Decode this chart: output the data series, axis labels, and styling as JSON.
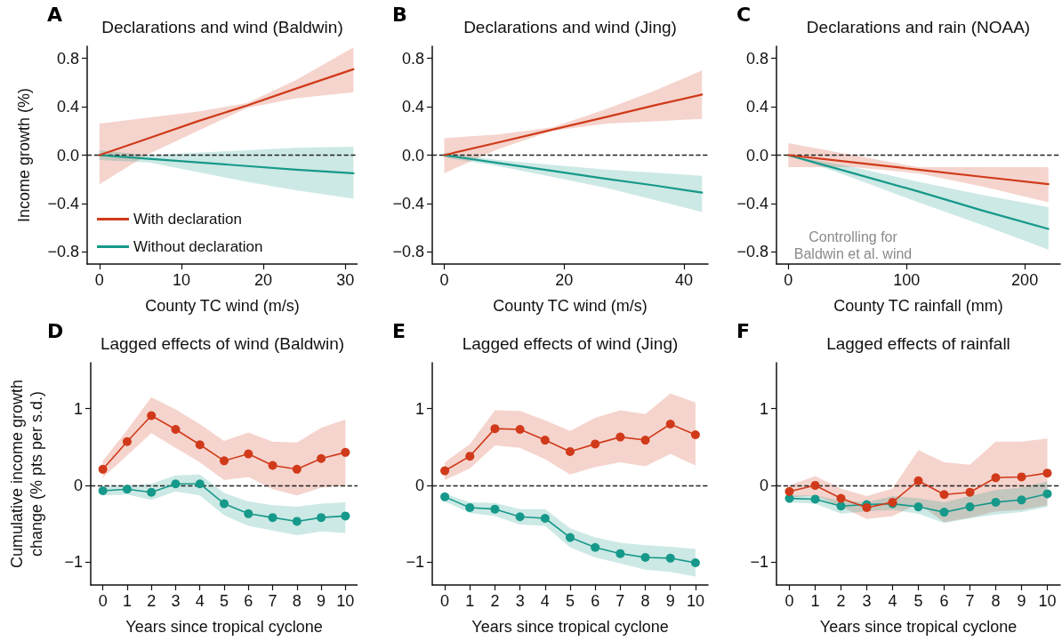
{
  "chart_data": [
    {
      "type": "line",
      "title": "Declarations and wind (Baldwin)",
      "xlabel": "County TC wind (m/s)",
      "ylabel": "Income growth (%)",
      "annotations": [
        "A"
      ],
      "xlim": [
        -1.5,
        31.5
      ],
      "xticks": [
        0,
        10,
        20,
        30
      ],
      "ylim": [
        -0.9,
        0.9
      ],
      "yticks": [
        {
          "value": -0.8,
          "label": "−0.8"
        },
        {
          "value": -0.4,
          "label": "−0.4"
        },
        {
          "value": 0,
          "label": "0.0"
        },
        0.4,
        0.8
      ],
      "grid": false,
      "legend": "bottom left",
      "marker": "none",
      "line_style": "solid",
      "ref_lines": [
        {
          "axis": "y",
          "value": 0,
          "color": "#222222",
          "line_style": "dashed"
        }
      ],
      "series": [
        {
          "name": "With declaration",
          "color": "#d03a1a",
          "x": [
            0,
            6,
            12,
            18,
            24,
            31
          ],
          "values": [
            0,
            0.14,
            0.28,
            0.41,
            0.55,
            0.71
          ],
          "lower": [
            -0.24,
            0.01,
            0.2,
            0.39,
            0.47,
            0.52
          ],
          "upper": [
            0.26,
            0.31,
            0.36,
            0.43,
            0.62,
            0.89
          ]
        },
        {
          "name": "Without declaration",
          "color": "#16998a",
          "x": [
            0,
            6,
            12,
            18,
            24,
            31
          ],
          "values": [
            0,
            -0.03,
            -0.06,
            -0.09,
            -0.12,
            -0.15
          ],
          "lower": [
            -0.04,
            -0.06,
            -0.14,
            -0.22,
            -0.29,
            -0.36
          ],
          "upper": [
            0.04,
            0.0,
            0.02,
            0.04,
            0.06,
            0.07
          ]
        }
      ]
    },
    {
      "type": "line",
      "title": "Declarations and wind (Jing)",
      "xlabel": "County TC wind (m/s)",
      "annotations": [
        "B"
      ],
      "xlim": [
        -2,
        44
      ],
      "xticks": [
        0,
        20,
        40
      ],
      "ylim": [
        -0.9,
        0.9
      ],
      "yticks": [
        {
          "value": -0.8,
          "label": "−0.8"
        },
        {
          "value": -0.4,
          "label": "−0.4"
        },
        {
          "value": 0,
          "label": "0.0"
        },
        0.4,
        0.8
      ],
      "grid": false,
      "marker": "none",
      "line_style": "solid",
      "ref_lines": [
        {
          "axis": "y",
          "value": 0,
          "color": "#222222",
          "line_style": "dashed"
        }
      ],
      "series": [
        {
          "color": "#d03a1a",
          "x": [
            0,
            9,
            18,
            27,
            35,
            43
          ],
          "values": [
            0,
            0.105,
            0.21,
            0.315,
            0.41,
            0.5
          ],
          "lower": [
            -0.15,
            0.05,
            0.2,
            0.26,
            0.28,
            0.3
          ],
          "upper": [
            0.14,
            0.17,
            0.23,
            0.38,
            0.53,
            0.7
          ]
        },
        {
          "color": "#16998a",
          "x": [
            0,
            9,
            18,
            27,
            35,
            43
          ],
          "values": [
            0,
            -0.065,
            -0.13,
            -0.195,
            -0.25,
            -0.31
          ],
          "lower": [
            -0.02,
            -0.09,
            -0.18,
            -0.27,
            -0.37,
            -0.47
          ],
          "upper": [
            0.02,
            -0.04,
            -0.08,
            -0.12,
            -0.145,
            -0.17
          ]
        }
      ]
    },
    {
      "type": "line",
      "title": "Declarations and rain (NOAA)",
      "xlabel": "County TC rainfall (mm)",
      "annotations": [
        "C",
        "Controlling for\nBaldwin et al. wind"
      ],
      "xlim": [
        -10,
        230
      ],
      "xticks": [
        0,
        100,
        200
      ],
      "ylim": [
        -0.9,
        0.9
      ],
      "yticks": [
        {
          "value": -0.8,
          "label": "−0.8"
        },
        {
          "value": -0.4,
          "label": "−0.4"
        },
        {
          "value": 0,
          "label": "0.0"
        },
        0.4,
        0.8
      ],
      "grid": false,
      "marker": "none",
      "line_style": "solid",
      "ref_lines": [
        {
          "axis": "y",
          "value": 0,
          "color": "#222222",
          "line_style": "dashed"
        }
      ],
      "series": [
        {
          "color": "#d03a1a",
          "x": [
            0,
            55,
            110,
            165,
            220
          ],
          "values": [
            0,
            -0.06,
            -0.12,
            -0.18,
            -0.24
          ],
          "lower": [
            -0.1,
            -0.1,
            -0.15,
            -0.26,
            -0.39
          ],
          "upper": [
            0.1,
            0.0,
            -0.1,
            -0.1,
            -0.1
          ]
        },
        {
          "color": "#16998a",
          "x": [
            0,
            55,
            110,
            165,
            220
          ],
          "values": [
            0,
            -0.15,
            -0.3,
            -0.46,
            -0.61
          ],
          "lower": [
            0,
            -0.19,
            -0.39,
            -0.58,
            -0.78
          ],
          "upper": [
            0,
            -0.1,
            -0.22,
            -0.33,
            -0.43
          ]
        }
      ]
    },
    {
      "type": "line",
      "title": "Lagged effects of wind (Baldwin)",
      "xlabel": "Years since tropical cyclone",
      "ylabel": "Cumulative income growth\nchange (% pts per s.d.)",
      "annotations": [
        "D"
      ],
      "xlim": [
        -0.5,
        10.5
      ],
      "xticks": [
        0,
        1,
        2,
        3,
        4,
        5,
        6,
        7,
        8,
        9,
        10
      ],
      "ylim": [
        -1.3,
        1.6
      ],
      "yticks": [
        {
          "value": -1,
          "label": "−1"
        },
        0,
        1
      ],
      "grid": false,
      "marker": "circle",
      "line_style": "solid",
      "ref_lines": [
        {
          "axis": "y",
          "value": 0,
          "color": "#222222",
          "line_style": "dashed"
        }
      ],
      "series": [
        {
          "color": "#d03a1a",
          "x": [
            0,
            1,
            2,
            3,
            4,
            5,
            6,
            7,
            8,
            9,
            10
          ],
          "values": [
            0.21,
            0.57,
            0.91,
            0.73,
            0.53,
            0.32,
            0.41,
            0.26,
            0.21,
            0.35,
            0.43
          ],
          "lower": [
            0.1,
            0.39,
            0.68,
            0.49,
            0.3,
            0.07,
            0.11,
            -0.05,
            -0.13,
            -0.03,
            0.0
          ],
          "upper": [
            0.32,
            0.72,
            1.15,
            0.99,
            0.8,
            0.58,
            0.69,
            0.57,
            0.56,
            0.75,
            0.86
          ]
        },
        {
          "color": "#16998a",
          "x": [
            0,
            1,
            2,
            3,
            4,
            5,
            6,
            7,
            8,
            9,
            10
          ],
          "values": [
            -0.07,
            -0.05,
            -0.09,
            0.02,
            0.02,
            -0.24,
            -0.37,
            -0.42,
            -0.47,
            -0.42,
            -0.4
          ],
          "lower": [
            -0.13,
            -0.12,
            -0.19,
            -0.08,
            -0.13,
            -0.39,
            -0.53,
            -0.59,
            -0.65,
            -0.6,
            -0.62
          ],
          "upper": [
            -0.01,
            0.0,
            0.02,
            0.13,
            0.14,
            -0.1,
            -0.21,
            -0.26,
            -0.28,
            -0.24,
            -0.22
          ]
        }
      ]
    },
    {
      "type": "line",
      "title": "Lagged effects of wind (Jing)",
      "xlabel": "Years since tropical cyclone",
      "annotations": [
        "E"
      ],
      "xlim": [
        -0.5,
        10.5
      ],
      "xticks": [
        0,
        1,
        2,
        3,
        4,
        5,
        6,
        7,
        8,
        9,
        10
      ],
      "ylim": [
        -1.3,
        1.6
      ],
      "yticks": [
        {
          "value": -1,
          "label": "−1"
        },
        0,
        1
      ],
      "grid": false,
      "marker": "circle",
      "line_style": "solid",
      "ref_lines": [
        {
          "axis": "y",
          "value": 0,
          "color": "#222222",
          "line_style": "dashed"
        }
      ],
      "series": [
        {
          "color": "#d03a1a",
          "x": [
            0,
            1,
            2,
            3,
            4,
            5,
            6,
            7,
            8,
            9,
            10
          ],
          "values": [
            0.19,
            0.38,
            0.74,
            0.73,
            0.59,
            0.44,
            0.54,
            0.63,
            0.59,
            0.8,
            0.66
          ],
          "lower": [
            0.07,
            0.22,
            0.52,
            0.49,
            0.34,
            0.14,
            0.24,
            0.3,
            0.25,
            0.41,
            0.26
          ],
          "upper": [
            0.3,
            0.54,
            0.98,
            0.97,
            0.85,
            0.71,
            0.88,
            0.98,
            0.93,
            1.2,
            1.08
          ]
        },
        {
          "color": "#16998a",
          "x": [
            0,
            1,
            2,
            3,
            4,
            5,
            6,
            7,
            8,
            9,
            10
          ],
          "values": [
            -0.15,
            -0.29,
            -0.31,
            -0.41,
            -0.43,
            -0.68,
            -0.81,
            -0.89,
            -0.94,
            -0.95,
            -1.01
          ],
          "lower": [
            -0.21,
            -0.36,
            -0.4,
            -0.51,
            -0.53,
            -0.81,
            -0.94,
            -1.02,
            -1.1,
            -1.13,
            -1.19
          ],
          "upper": [
            -0.11,
            -0.22,
            -0.23,
            -0.31,
            -0.31,
            -0.56,
            -0.68,
            -0.75,
            -0.78,
            -0.8,
            -0.83
          ]
        }
      ]
    },
    {
      "type": "line",
      "title": "Lagged effects of rainfall",
      "xlabel": "Years since tropical cyclone",
      "annotations": [
        "F"
      ],
      "xlim": [
        -0.5,
        10.5
      ],
      "xticks": [
        0,
        1,
        2,
        3,
        4,
        5,
        6,
        7,
        8,
        9,
        10
      ],
      "ylim": [
        -1.3,
        1.6
      ],
      "yticks": [
        {
          "value": -1,
          "label": "−1"
        },
        0,
        1
      ],
      "grid": false,
      "marker": "circle",
      "line_style": "solid",
      "ref_lines": [
        {
          "axis": "y",
          "value": 0,
          "color": "#222222",
          "line_style": "dashed"
        }
      ],
      "series": [
        {
          "color": "#d03a1a",
          "x": [
            0,
            1,
            2,
            3,
            4,
            5,
            6,
            7,
            8,
            9,
            10
          ],
          "values": [
            -0.08,
            0.0,
            -0.17,
            -0.29,
            -0.22,
            0.06,
            -0.12,
            -0.09,
            0.1,
            0.11,
            0.16
          ],
          "lower": [
            -0.16,
            -0.13,
            -0.28,
            -0.44,
            -0.4,
            -0.24,
            -0.48,
            -0.42,
            -0.34,
            -0.32,
            -0.26
          ],
          "upper": [
            0.0,
            0.12,
            -0.04,
            -0.14,
            -0.04,
            0.46,
            0.3,
            0.27,
            0.57,
            0.57,
            0.61
          ]
        },
        {
          "color": "#16998a",
          "x": [
            0,
            1,
            2,
            3,
            4,
            5,
            6,
            7,
            8,
            9,
            10
          ],
          "values": [
            -0.17,
            -0.18,
            -0.27,
            -0.25,
            -0.24,
            -0.28,
            -0.35,
            -0.28,
            -0.22,
            -0.19,
            -0.11
          ],
          "lower": [
            -0.22,
            -0.24,
            -0.37,
            -0.34,
            -0.32,
            -0.37,
            -0.49,
            -0.43,
            -0.38,
            -0.35,
            -0.28
          ],
          "upper": [
            -0.13,
            -0.13,
            -0.2,
            -0.22,
            -0.14,
            -0.17,
            -0.22,
            -0.14,
            -0.06,
            -0.03,
            0.05
          ]
        }
      ]
    }
  ]
}
